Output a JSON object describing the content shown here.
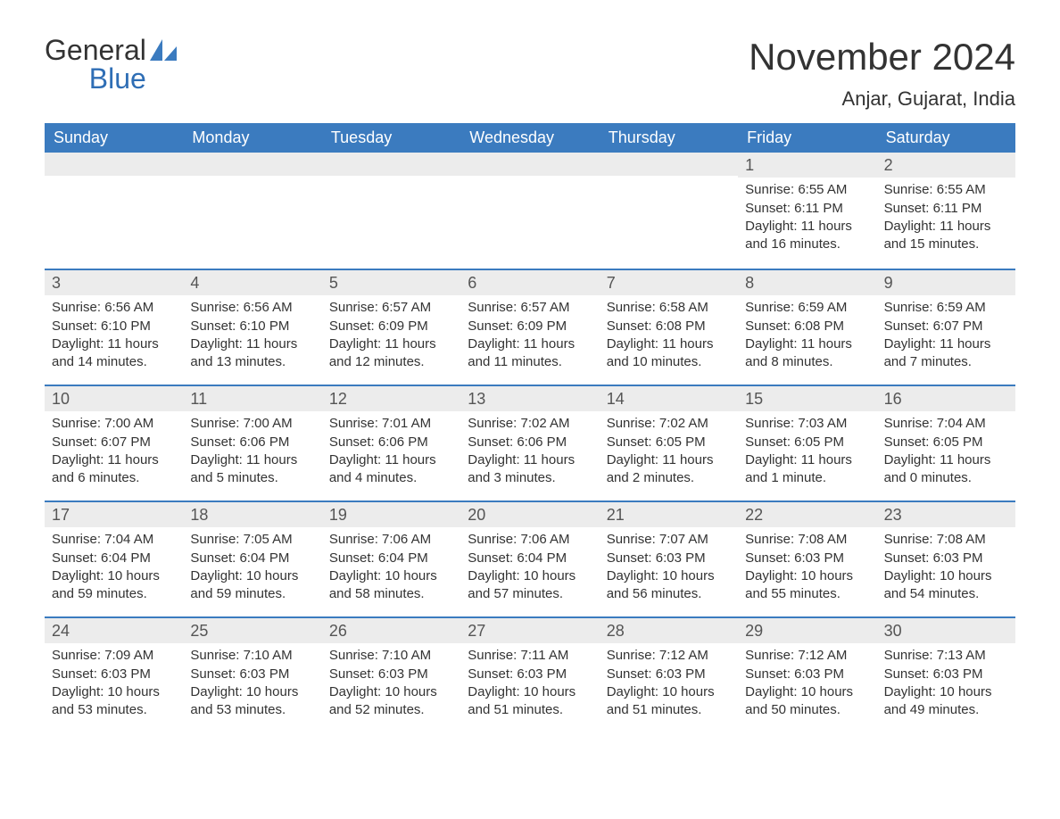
{
  "logo": {
    "word1": "General",
    "word2": "Blue"
  },
  "title": "November 2024",
  "location": "Anjar, Gujarat, India",
  "colors": {
    "header_bg": "#3b7bbf",
    "header_text": "#ffffff",
    "daynum_bg": "#ececec",
    "week_border": "#3b7bbf",
    "body_text": "#333333",
    "logo_blue": "#2f6eb5"
  },
  "layout": {
    "columns": 7,
    "rows": 5,
    "label_fontsize": 18,
    "title_fontsize": 42,
    "location_fontsize": 22,
    "cell_fontsize": 15
  },
  "day_labels": [
    "Sunday",
    "Monday",
    "Tuesday",
    "Wednesday",
    "Thursday",
    "Friday",
    "Saturday"
  ],
  "weeks": [
    [
      null,
      null,
      null,
      null,
      null,
      {
        "n": "1",
        "sunrise": "6:55 AM",
        "sunset": "6:11 PM",
        "daylight": "11 hours and 16 minutes."
      },
      {
        "n": "2",
        "sunrise": "6:55 AM",
        "sunset": "6:11 PM",
        "daylight": "11 hours and 15 minutes."
      }
    ],
    [
      {
        "n": "3",
        "sunrise": "6:56 AM",
        "sunset": "6:10 PM",
        "daylight": "11 hours and 14 minutes."
      },
      {
        "n": "4",
        "sunrise": "6:56 AM",
        "sunset": "6:10 PM",
        "daylight": "11 hours and 13 minutes."
      },
      {
        "n": "5",
        "sunrise": "6:57 AM",
        "sunset": "6:09 PM",
        "daylight": "11 hours and 12 minutes."
      },
      {
        "n": "6",
        "sunrise": "6:57 AM",
        "sunset": "6:09 PM",
        "daylight": "11 hours and 11 minutes."
      },
      {
        "n": "7",
        "sunrise": "6:58 AM",
        "sunset": "6:08 PM",
        "daylight": "11 hours and 10 minutes."
      },
      {
        "n": "8",
        "sunrise": "6:59 AM",
        "sunset": "6:08 PM",
        "daylight": "11 hours and 8 minutes."
      },
      {
        "n": "9",
        "sunrise": "6:59 AM",
        "sunset": "6:07 PM",
        "daylight": "11 hours and 7 minutes."
      }
    ],
    [
      {
        "n": "10",
        "sunrise": "7:00 AM",
        "sunset": "6:07 PM",
        "daylight": "11 hours and 6 minutes."
      },
      {
        "n": "11",
        "sunrise": "7:00 AM",
        "sunset": "6:06 PM",
        "daylight": "11 hours and 5 minutes."
      },
      {
        "n": "12",
        "sunrise": "7:01 AM",
        "sunset": "6:06 PM",
        "daylight": "11 hours and 4 minutes."
      },
      {
        "n": "13",
        "sunrise": "7:02 AM",
        "sunset": "6:06 PM",
        "daylight": "11 hours and 3 minutes."
      },
      {
        "n": "14",
        "sunrise": "7:02 AM",
        "sunset": "6:05 PM",
        "daylight": "11 hours and 2 minutes."
      },
      {
        "n": "15",
        "sunrise": "7:03 AM",
        "sunset": "6:05 PM",
        "daylight": "11 hours and 1 minute."
      },
      {
        "n": "16",
        "sunrise": "7:04 AM",
        "sunset": "6:05 PM",
        "daylight": "11 hours and 0 minutes."
      }
    ],
    [
      {
        "n": "17",
        "sunrise": "7:04 AM",
        "sunset": "6:04 PM",
        "daylight": "10 hours and 59 minutes."
      },
      {
        "n": "18",
        "sunrise": "7:05 AM",
        "sunset": "6:04 PM",
        "daylight": "10 hours and 59 minutes."
      },
      {
        "n": "19",
        "sunrise": "7:06 AM",
        "sunset": "6:04 PM",
        "daylight": "10 hours and 58 minutes."
      },
      {
        "n": "20",
        "sunrise": "7:06 AM",
        "sunset": "6:04 PM",
        "daylight": "10 hours and 57 minutes."
      },
      {
        "n": "21",
        "sunrise": "7:07 AM",
        "sunset": "6:03 PM",
        "daylight": "10 hours and 56 minutes."
      },
      {
        "n": "22",
        "sunrise": "7:08 AM",
        "sunset": "6:03 PM",
        "daylight": "10 hours and 55 minutes."
      },
      {
        "n": "23",
        "sunrise": "7:08 AM",
        "sunset": "6:03 PM",
        "daylight": "10 hours and 54 minutes."
      }
    ],
    [
      {
        "n": "24",
        "sunrise": "7:09 AM",
        "sunset": "6:03 PM",
        "daylight": "10 hours and 53 minutes."
      },
      {
        "n": "25",
        "sunrise": "7:10 AM",
        "sunset": "6:03 PM",
        "daylight": "10 hours and 53 minutes."
      },
      {
        "n": "26",
        "sunrise": "7:10 AM",
        "sunset": "6:03 PM",
        "daylight": "10 hours and 52 minutes."
      },
      {
        "n": "27",
        "sunrise": "7:11 AM",
        "sunset": "6:03 PM",
        "daylight": "10 hours and 51 minutes."
      },
      {
        "n": "28",
        "sunrise": "7:12 AM",
        "sunset": "6:03 PM",
        "daylight": "10 hours and 51 minutes."
      },
      {
        "n": "29",
        "sunrise": "7:12 AM",
        "sunset": "6:03 PM",
        "daylight": "10 hours and 50 minutes."
      },
      {
        "n": "30",
        "sunrise": "7:13 AM",
        "sunset": "6:03 PM",
        "daylight": "10 hours and 49 minutes."
      }
    ]
  ],
  "labels": {
    "sunrise": "Sunrise: ",
    "sunset": "Sunset: ",
    "daylight": "Daylight: "
  }
}
